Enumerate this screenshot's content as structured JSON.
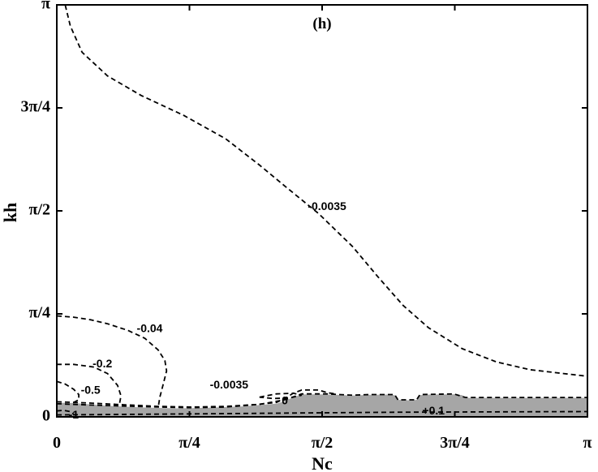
{
  "chart_data": {
    "type": "contour",
    "title": "",
    "panel_label": "(h)",
    "xlabel": "Nc",
    "ylabel": "kh",
    "xlim": [
      0,
      3.14159
    ],
    "ylim": [
      0,
      3.14159
    ],
    "xticks": [
      {
        "value": 0,
        "label": "0"
      },
      {
        "value": 0.7854,
        "label": "π/4"
      },
      {
        "value": 1.5708,
        "label": "π/2"
      },
      {
        "value": 2.3562,
        "label": "3π/4"
      },
      {
        "value": 3.14159,
        "label": "π"
      }
    ],
    "yticks": [
      {
        "value": 0,
        "label": "0"
      },
      {
        "value": 0.7854,
        "label": "π/4"
      },
      {
        "value": 1.5708,
        "label": "π/2"
      },
      {
        "value": 2.3562,
        "label": "3π/4"
      },
      {
        "value": 3.14159,
        "label": "π"
      }
    ],
    "grid": false,
    "colors": {
      "region_fill": "#a6a6a6",
      "line": "#000000"
    },
    "shaded_region": {
      "points": [
        [
          0,
          0
        ],
        [
          0,
          0.108
        ],
        [
          0.1,
          0.105
        ],
        [
          0.2,
          0.095
        ],
        [
          0.3,
          0.085
        ],
        [
          0.4,
          0.078
        ],
        [
          0.5,
          0.072
        ],
        [
          0.6,
          0.068
        ],
        [
          0.7,
          0.065
        ],
        [
          0.8,
          0.066
        ],
        [
          0.9,
          0.07
        ],
        [
          1.0,
          0.075
        ],
        [
          1.1,
          0.08
        ],
        [
          1.2,
          0.09
        ],
        [
          1.3,
          0.1
        ],
        [
          1.35,
          0.12
        ],
        [
          1.4,
          0.15
        ],
        [
          1.45,
          0.172
        ],
        [
          1.55,
          0.172
        ],
        [
          1.65,
          0.168
        ],
        [
          1.75,
          0.162
        ],
        [
          1.85,
          0.168
        ],
        [
          1.95,
          0.17
        ],
        [
          2.0,
          0.165
        ],
        [
          2.02,
          0.13
        ],
        [
          2.1,
          0.125
        ],
        [
          2.13,
          0.13
        ],
        [
          2.15,
          0.165
        ],
        [
          2.2,
          0.17
        ],
        [
          2.35,
          0.172
        ],
        [
          2.4,
          0.165
        ],
        [
          2.42,
          0.145
        ],
        [
          2.5,
          0.145
        ],
        [
          2.8,
          0.145
        ],
        [
          3.14159,
          0.145
        ],
        [
          3.14159,
          0
        ]
      ]
    },
    "contours": [
      {
        "level": "-0.0035",
        "label": {
          "text": "-0.0035",
          "x": 1.6,
          "y": 1.6
        },
        "points": [
          [
            0.05,
            3.14
          ],
          [
            0.08,
            2.98
          ],
          [
            0.15,
            2.78
          ],
          [
            0.3,
            2.6
          ],
          [
            0.5,
            2.45
          ],
          [
            0.75,
            2.3
          ],
          [
            1.0,
            2.12
          ],
          [
            1.2,
            1.92
          ],
          [
            1.35,
            1.76
          ],
          [
            1.55,
            1.55
          ],
          [
            1.75,
            1.3
          ],
          [
            1.9,
            1.07
          ],
          [
            2.05,
            0.85
          ],
          [
            2.2,
            0.68
          ],
          [
            2.4,
            0.52
          ],
          [
            2.6,
            0.42
          ],
          [
            2.8,
            0.36
          ],
          [
            3.0,
            0.33
          ],
          [
            3.14,
            0.31
          ]
        ]
      },
      {
        "level": "-0.04",
        "label": {
          "text": "-0.04",
          "x": 0.55,
          "y": 0.67
        },
        "points": [
          [
            0,
            0.77
          ],
          [
            0.1,
            0.76
          ],
          [
            0.2,
            0.74
          ],
          [
            0.3,
            0.71
          ],
          [
            0.42,
            0.66
          ],
          [
            0.52,
            0.6
          ],
          [
            0.6,
            0.51
          ],
          [
            0.64,
            0.43
          ],
          [
            0.65,
            0.35
          ],
          [
            0.63,
            0.25
          ],
          [
            0.61,
            0.15
          ],
          [
            0.6,
            0.07
          ]
        ]
      },
      {
        "level": "-0.2",
        "label": {
          "text": "-0.2",
          "x": 0.27,
          "y": 0.4
        },
        "points": [
          [
            0,
            0.4
          ],
          [
            0.1,
            0.4
          ],
          [
            0.22,
            0.38
          ],
          [
            0.3,
            0.33
          ],
          [
            0.36,
            0.24
          ],
          [
            0.38,
            0.16
          ],
          [
            0.37,
            0.09
          ]
        ]
      },
      {
        "level": "-0.5",
        "label": {
          "text": "-0.5",
          "x": 0.2,
          "y": 0.2
        },
        "points": [
          [
            0,
            0.27
          ],
          [
            0.05,
            0.25
          ],
          [
            0.1,
            0.21
          ],
          [
            0.13,
            0.17
          ],
          [
            0.13,
            0.13
          ],
          [
            0.1,
            0.11
          ]
        ]
      },
      {
        "level": "-1",
        "label": {
          "text": "-1",
          "x": 0.1,
          "y": 0.01
        },
        "points": [
          [
            0,
            0.045
          ],
          [
            0.04,
            0.05
          ],
          [
            0.08,
            0.04
          ],
          [
            0.1,
            0.02
          ]
        ]
      },
      {
        "level": "-0.0035 (lower)",
        "label": {
          "text": "-0.0035",
          "x": 1.02,
          "y": 0.24
        },
        "points": [
          [
            0,
            0.1
          ],
          [
            0.2,
            0.09
          ],
          [
            0.4,
            0.082
          ],
          [
            0.6,
            0.075
          ],
          [
            0.8,
            0.07
          ],
          [
            1.0,
            0.075
          ],
          [
            1.15,
            0.09
          ],
          [
            1.3,
            0.11
          ],
          [
            1.35,
            0.14
          ],
          [
            1.4,
            0.18
          ],
          [
            1.45,
            0.205
          ],
          [
            1.55,
            0.205
          ],
          [
            1.6,
            0.185
          ],
          [
            1.65,
            0.175
          ]
        ]
      },
      {
        "level": "-0.0035 (small loop)",
        "label": null,
        "points": [
          [
            1.2,
            0.15
          ],
          [
            1.3,
            0.175
          ],
          [
            1.4,
            0.18
          ],
          [
            1.45,
            0.165
          ],
          [
            1.38,
            0.145
          ],
          [
            1.28,
            0.14
          ],
          [
            1.2,
            0.15
          ]
        ]
      },
      {
        "level": "0",
        "label": {
          "text": "0",
          "x": 1.35,
          "y": 0.12
        },
        "points": [
          [
            0,
            0.115
          ],
          [
            0.2,
            0.105
          ],
          [
            0.4,
            0.092
          ],
          [
            0.6,
            0.08
          ],
          [
            0.8,
            0.075
          ],
          [
            1.0,
            0.08
          ],
          [
            1.2,
            0.095
          ],
          [
            1.35,
            0.13
          ],
          [
            1.45,
            0.175
          ],
          [
            1.6,
            0.175
          ],
          [
            1.75,
            0.165
          ],
          [
            1.85,
            0.17
          ],
          [
            2.0,
            0.17
          ],
          [
            2.02,
            0.13
          ],
          [
            2.13,
            0.13
          ],
          [
            2.15,
            0.17
          ],
          [
            2.35,
            0.175
          ],
          [
            2.42,
            0.148
          ],
          [
            3.14,
            0.148
          ]
        ]
      },
      {
        "level": "+0.1",
        "label": {
          "text": "+0.1",
          "x": 2.23,
          "y": 0.04
        },
        "points": [
          [
            0,
            0.015
          ],
          [
            0.5,
            0.02
          ],
          [
            1.0,
            0.025
          ],
          [
            1.5,
            0.03
          ],
          [
            2.0,
            0.035
          ],
          [
            2.5,
            0.038
          ],
          [
            3.14,
            0.04
          ]
        ]
      }
    ]
  }
}
